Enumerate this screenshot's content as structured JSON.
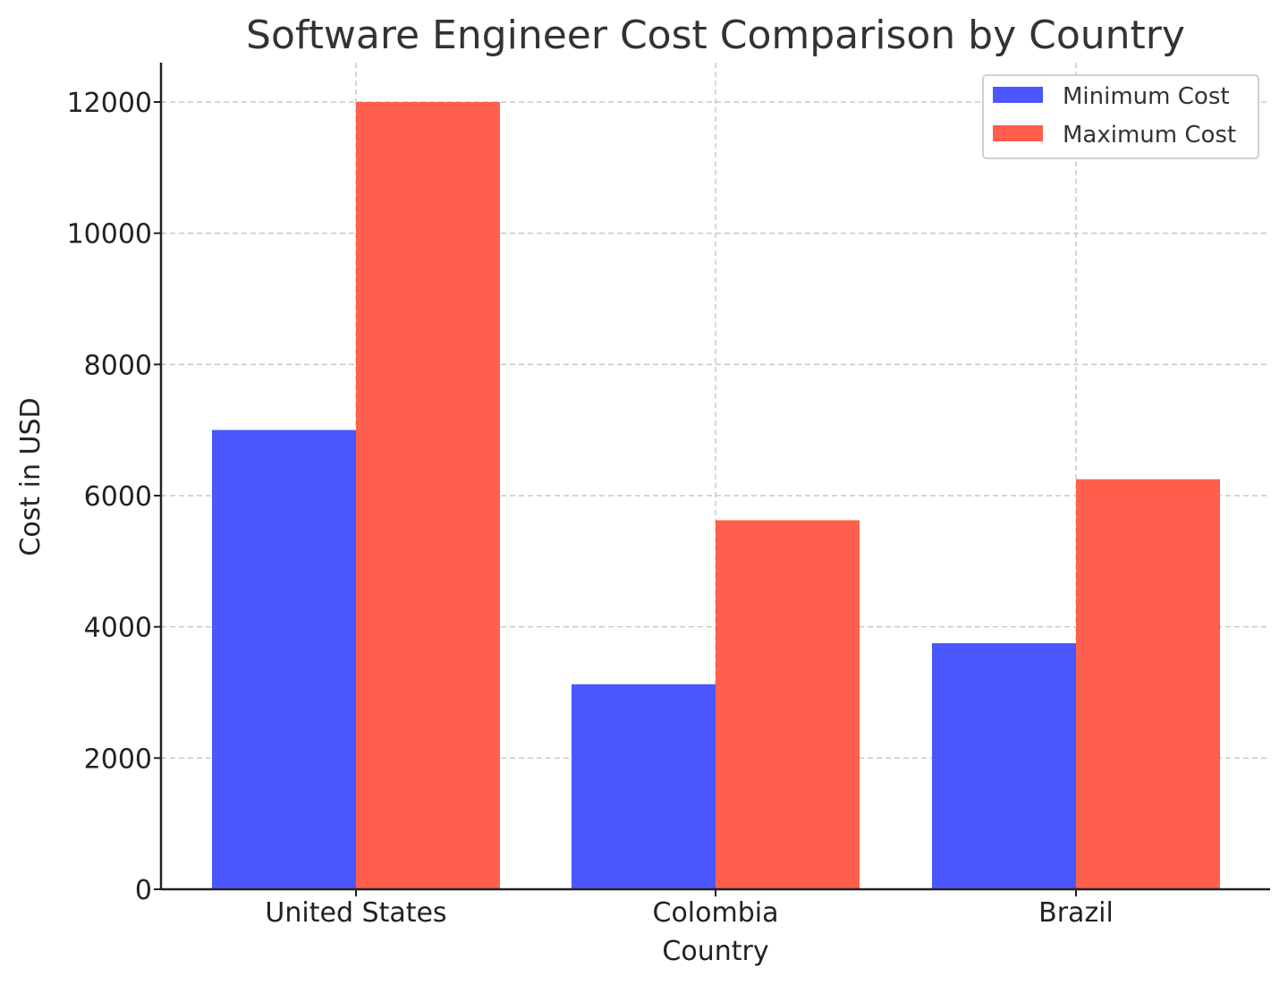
{
  "chart_data": {
    "type": "bar",
    "title": "Software Engineer Cost Comparison by Country",
    "xlabel": "Country",
    "ylabel": "Cost in USD",
    "categories": [
      "United States",
      "Colombia",
      "Brazil"
    ],
    "series": [
      {
        "name": "Minimum Cost",
        "values": [
          7000,
          3125,
          3750
        ],
        "color": "#4a57ff"
      },
      {
        "name": "Maximum Cost",
        "values": [
          12000,
          5625,
          6250
        ],
        "color": "#ff5f4c"
      }
    ],
    "ylim": [
      0,
      12600
    ],
    "yticks": [
      0,
      2000,
      4000,
      6000,
      8000,
      10000,
      12000
    ],
    "grid": true,
    "legend_position": "top-right"
  }
}
